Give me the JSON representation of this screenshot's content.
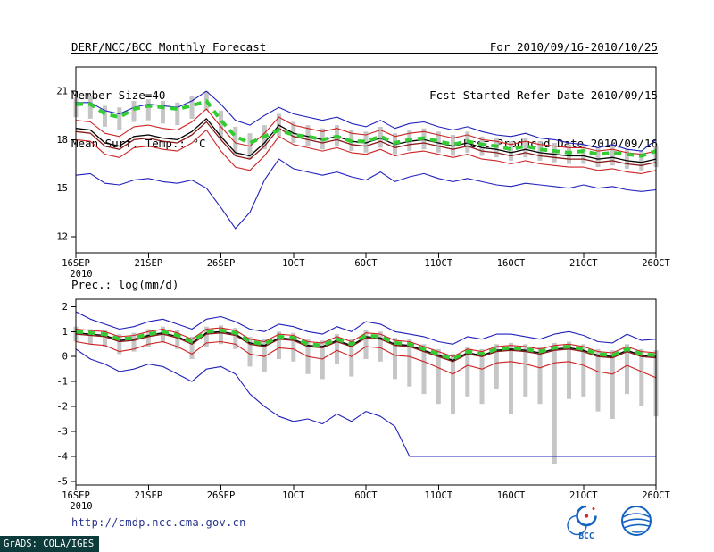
{
  "header": {
    "title": "DERF/NCC/BCC Monthly Forecast",
    "member_size": "Member Size=40",
    "variable": "Mean Surf. Temp.: °C",
    "for_range": "For 2010/09/16-2010/10/25",
    "refer_date": "Fcst Started Refer Date 2010/09/15",
    "produced_date": "Fcst Produced Date 2010/09/16"
  },
  "footer": {
    "url": "http://cmdp.ncc.cma.gov.cn",
    "grads_tag": "GrADS: COLA/IGES",
    "logos": [
      {
        "name": "bcc-logo",
        "label": "BCC"
      },
      {
        "name": "cma-emblem-logo",
        "label": ""
      }
    ]
  },
  "chart_data": [
    {
      "type": "line",
      "title": "Mean Surf. Temp.: °C",
      "xlabel": "",
      "ylabel": "",
      "x_tick_labels": [
        "16SEP",
        "21SEP",
        "26SEP",
        "1OCT",
        "6OCT",
        "11OCT",
        "16OCT",
        "21OCT",
        "26OCT"
      ],
      "x_sub_label": "2010",
      "x_tick_step": 5,
      "ylim": [
        11.0,
        22.5
      ],
      "yticks": [
        12,
        15,
        18,
        21
      ],
      "grid": false,
      "legend": "none",
      "bars": {
        "name": "ensemble-spread-bar",
        "color": "#c6c6c6",
        "high": [
          20.6,
          20.7,
          20.1,
          20.0,
          20.4,
          20.5,
          20.4,
          20.3,
          20.7,
          21.0,
          19.8,
          18.8,
          18.4,
          18.9,
          19.6,
          19.1,
          18.9,
          18.7,
          18.9,
          18.6,
          18.5,
          18.8,
          18.4,
          18.6,
          18.7,
          18.5,
          18.3,
          18.5,
          18.2,
          18.1,
          17.9,
          18.1,
          17.9,
          17.8,
          17.7,
          17.7,
          17.5,
          17.6,
          17.4,
          17.3,
          17.6
        ],
        "low": [
          19.4,
          19.3,
          18.8,
          18.6,
          19.1,
          19.2,
          19.0,
          18.9,
          19.3,
          19.8,
          18.0,
          17.0,
          16.8,
          17.4,
          18.2,
          17.8,
          17.6,
          17.4,
          17.6,
          17.3,
          17.2,
          17.5,
          17.1,
          17.3,
          17.4,
          17.2,
          17.0,
          17.2,
          17.0,
          16.9,
          16.7,
          16.9,
          16.7,
          16.6,
          16.5,
          16.5,
          16.3,
          16.4,
          16.2,
          16.1,
          16.3
        ]
      },
      "series": [
        {
          "name": "ensemble-max",
          "color": "#2020bb",
          "width": 1.1,
          "values": [
            20.3,
            20.3,
            19.8,
            19.6,
            20.0,
            20.2,
            20.1,
            20.0,
            20.4,
            21.0,
            20.2,
            19.2,
            18.9,
            19.5,
            20.0,
            19.6,
            19.4,
            19.2,
            19.4,
            19.0,
            18.8,
            19.2,
            18.7,
            19.0,
            19.1,
            18.8,
            18.6,
            18.8,
            18.5,
            18.3,
            18.2,
            18.4,
            18.1,
            18.0,
            17.8,
            17.7,
            17.5,
            17.7,
            17.4,
            17.3,
            18.0
          ]
        },
        {
          "name": "ensemble-min",
          "color": "#2020bb",
          "width": 1.1,
          "values": [
            15.8,
            15.9,
            15.3,
            15.2,
            15.5,
            15.6,
            15.4,
            15.3,
            15.5,
            15.0,
            13.8,
            12.5,
            13.5,
            15.5,
            16.8,
            16.2,
            16.0,
            15.8,
            16.0,
            15.7,
            15.5,
            16.0,
            15.4,
            15.7,
            15.9,
            15.6,
            15.4,
            15.6,
            15.4,
            15.2,
            15.1,
            15.3,
            15.2,
            15.1,
            15.0,
            15.2,
            15.0,
            15.1,
            14.9,
            14.8,
            14.9
          ]
        },
        {
          "name": "upper-quartile",
          "color": "#cc2222",
          "width": 1.1,
          "values": [
            19.2,
            19.1,
            18.4,
            18.2,
            18.8,
            18.9,
            18.7,
            18.6,
            19.1,
            19.9,
            18.8,
            17.8,
            17.6,
            18.4,
            19.4,
            18.9,
            18.7,
            18.5,
            18.7,
            18.4,
            18.3,
            18.6,
            18.2,
            18.4,
            18.5,
            18.3,
            18.1,
            18.3,
            18.0,
            17.9,
            17.7,
            17.9,
            17.7,
            17.6,
            17.5,
            17.5,
            17.3,
            17.4,
            17.2,
            17.1,
            17.3
          ]
        },
        {
          "name": "lower-quartile",
          "color": "#cc2222",
          "width": 1.1,
          "values": [
            18.0,
            17.9,
            17.1,
            16.9,
            17.5,
            17.6,
            17.4,
            17.3,
            17.8,
            18.6,
            17.3,
            16.3,
            16.1,
            17.0,
            18.2,
            17.7,
            17.5,
            17.3,
            17.5,
            17.2,
            17.1,
            17.4,
            17.0,
            17.2,
            17.3,
            17.1,
            16.9,
            17.1,
            16.8,
            16.7,
            16.5,
            16.7,
            16.5,
            16.4,
            16.3,
            16.3,
            16.1,
            16.2,
            16.0,
            15.9,
            16.1
          ]
        },
        {
          "name": "ensemble-median",
          "color": "#8b1a1a",
          "width": 1.3,
          "values": [
            18.5,
            18.4,
            17.6,
            17.4,
            18.0,
            18.1,
            17.9,
            17.8,
            18.3,
            19.1,
            18.0,
            17.0,
            16.8,
            17.6,
            18.7,
            18.2,
            18.0,
            17.8,
            18.0,
            17.7,
            17.6,
            17.9,
            17.5,
            17.7,
            17.8,
            17.6,
            17.4,
            17.6,
            17.3,
            17.2,
            17.0,
            17.2,
            17.0,
            16.9,
            16.8,
            16.8,
            16.6,
            16.7,
            16.5,
            16.4,
            16.6
          ]
        },
        {
          "name": "ensemble-mean",
          "color": "#000000",
          "width": 1.3,
          "values": [
            18.7,
            18.6,
            17.8,
            17.6,
            18.2,
            18.3,
            18.1,
            18.0,
            18.5,
            19.3,
            18.2,
            17.2,
            17.0,
            17.8,
            18.9,
            18.4,
            18.2,
            18.0,
            18.2,
            17.9,
            17.8,
            18.1,
            17.7,
            17.9,
            18.0,
            17.8,
            17.6,
            17.8,
            17.5,
            17.4,
            17.2,
            17.4,
            17.2,
            17.1,
            17.0,
            17.0,
            16.8,
            16.9,
            16.7,
            16.6,
            16.8
          ]
        },
        {
          "name": "climatology",
          "color": "#33cc33",
          "width": 4,
          "dash": "8,6",
          "values": [
            20.2,
            20.2,
            19.6,
            19.4,
            19.9,
            20.1,
            20.0,
            19.9,
            20.1,
            20.4,
            19.2,
            18.2,
            17.8,
            18.2,
            18.6,
            18.3,
            18.2,
            18.0,
            18.2,
            17.9,
            17.9,
            18.2,
            17.8,
            18.0,
            18.1,
            17.9,
            17.7,
            17.9,
            17.7,
            17.6,
            17.4,
            17.6,
            17.4,
            17.3,
            17.2,
            17.3,
            17.1,
            17.2,
            17.1,
            17.0,
            17.3
          ]
        }
      ]
    },
    {
      "type": "line",
      "title": "Prec.: log(mm/d)",
      "xlabel": "",
      "ylabel": "",
      "x_tick_labels": [
        "16SEP",
        "21SEP",
        "26SEP",
        "1OCT",
        "6OCT",
        "11OCT",
        "16OCT",
        "21OCT",
        "26OCT"
      ],
      "x_sub_label": "2010",
      "x_tick_step": 5,
      "ylim": [
        -5.15,
        2.3
      ],
      "yticks": [
        -5,
        -4,
        -3,
        -2,
        -1,
        0,
        1,
        2
      ],
      "grid": false,
      "legend": "none",
      "bars": {
        "name": "ensemble-spread-bar",
        "color": "#c6c6c6",
        "high": [
          1.2,
          1.1,
          1.05,
          0.9,
          0.95,
          1.1,
          1.2,
          1.05,
          0.8,
          1.2,
          1.25,
          1.15,
          0.8,
          0.7,
          1.0,
          0.95,
          0.7,
          0.65,
          0.9,
          0.7,
          1.05,
          1.0,
          0.75,
          0.7,
          0.5,
          0.3,
          0.1,
          0.4,
          0.3,
          0.5,
          0.55,
          0.5,
          0.4,
          0.55,
          0.6,
          0.5,
          0.3,
          0.25,
          0.5,
          0.3,
          0.25
        ],
        "low": [
          0.6,
          0.5,
          0.4,
          0.1,
          0.2,
          0.4,
          0.55,
          0.3,
          -0.1,
          0.4,
          0.5,
          0.3,
          -0.4,
          -0.6,
          -0.1,
          -0.2,
          -0.7,
          -0.9,
          -0.3,
          -0.8,
          -0.1,
          -0.2,
          -0.9,
          -1.2,
          -1.5,
          -1.9,
          -2.3,
          -1.6,
          -1.9,
          -1.3,
          -2.3,
          -1.6,
          -1.9,
          -4.3,
          -1.7,
          -1.6,
          -2.2,
          -2.5,
          -1.5,
          -2.0,
          -2.4
        ]
      },
      "series": [
        {
          "name": "ensemble-max",
          "color": "#2020bb",
          "width": 1.1,
          "values": [
            1.8,
            1.5,
            1.3,
            1.1,
            1.2,
            1.4,
            1.5,
            1.3,
            1.1,
            1.5,
            1.6,
            1.4,
            1.1,
            1.0,
            1.3,
            1.2,
            1.0,
            0.9,
            1.2,
            1.0,
            1.4,
            1.3,
            1.0,
            0.9,
            0.8,
            0.6,
            0.5,
            0.8,
            0.7,
            0.9,
            0.9,
            0.8,
            0.7,
            0.9,
            1.0,
            0.85,
            0.6,
            0.55,
            0.9,
            0.65,
            0.7
          ]
        },
        {
          "name": "ensemble-min",
          "color": "#2020bb",
          "width": 1.1,
          "values": [
            0.3,
            -0.1,
            -0.3,
            -0.6,
            -0.5,
            -0.3,
            -0.4,
            -0.7,
            -1.0,
            -0.5,
            -0.4,
            -0.7,
            -1.5,
            -2.0,
            -2.4,
            -2.6,
            -2.5,
            -2.7,
            -2.3,
            -2.6,
            -2.2,
            -2.4,
            -2.8,
            -4.0,
            -4.0,
            -4.0,
            -4.0,
            -4.0,
            -4.0,
            -4.0,
            -4.0,
            -4.0,
            -4.0,
            -4.0,
            -4.0,
            -4.0,
            -4.0,
            -4.0,
            -4.0,
            -4.0,
            -4.0
          ]
        },
        {
          "name": "upper-quartile",
          "color": "#cc2222",
          "width": 1.1,
          "values": [
            1.1,
            1.05,
            1.0,
            0.8,
            0.85,
            1.0,
            1.1,
            0.95,
            0.7,
            1.1,
            1.15,
            1.05,
            0.7,
            0.6,
            0.9,
            0.85,
            0.6,
            0.55,
            0.8,
            0.6,
            0.95,
            0.9,
            0.65,
            0.6,
            0.4,
            0.2,
            0.0,
            0.3,
            0.2,
            0.4,
            0.45,
            0.4,
            0.3,
            0.45,
            0.5,
            0.4,
            0.2,
            0.15,
            0.4,
            0.2,
            0.15
          ]
        },
        {
          "name": "lower-quartile",
          "color": "#cc2222",
          "width": 1.1,
          "values": [
            0.6,
            0.5,
            0.45,
            0.2,
            0.3,
            0.5,
            0.6,
            0.4,
            0.1,
            0.55,
            0.6,
            0.5,
            0.1,
            0.0,
            0.35,
            0.3,
            0.0,
            -0.1,
            0.25,
            0.0,
            0.4,
            0.35,
            0.05,
            0.0,
            -0.2,
            -0.45,
            -0.7,
            -0.35,
            -0.5,
            -0.25,
            -0.2,
            -0.3,
            -0.45,
            -0.25,
            -0.2,
            -0.35,
            -0.6,
            -0.7,
            -0.35,
            -0.6,
            -0.85
          ]
        },
        {
          "name": "ensemble-median",
          "color": "#8b1a1a",
          "width": 1.3,
          "values": [
            0.9,
            0.85,
            0.8,
            0.6,
            0.65,
            0.8,
            0.9,
            0.75,
            0.5,
            0.9,
            0.95,
            0.85,
            0.5,
            0.4,
            0.7,
            0.65,
            0.4,
            0.35,
            0.6,
            0.4,
            0.75,
            0.7,
            0.45,
            0.4,
            0.2,
            0.0,
            -0.2,
            0.1,
            0.0,
            0.2,
            0.25,
            0.2,
            0.1,
            0.25,
            0.3,
            0.2,
            0.0,
            -0.05,
            0.2,
            0.0,
            -0.05
          ]
        },
        {
          "name": "ensemble-mean",
          "color": "#000000",
          "width": 1.3,
          "values": [
            0.95,
            0.9,
            0.85,
            0.65,
            0.7,
            0.85,
            0.95,
            0.8,
            0.55,
            0.95,
            1.0,
            0.9,
            0.55,
            0.45,
            0.75,
            0.7,
            0.45,
            0.4,
            0.65,
            0.45,
            0.8,
            0.75,
            0.5,
            0.45,
            0.25,
            0.05,
            -0.15,
            0.15,
            0.05,
            0.25,
            0.3,
            0.25,
            0.15,
            0.3,
            0.35,
            0.25,
            0.05,
            0.0,
            0.25,
            0.05,
            0.0
          ]
        },
        {
          "name": "climatology",
          "color": "#33cc33",
          "width": 4,
          "dash": "8,6",
          "values": [
            1.0,
            0.95,
            0.9,
            0.7,
            0.75,
            0.9,
            1.0,
            0.85,
            0.6,
            1.0,
            1.05,
            0.95,
            0.6,
            0.5,
            0.8,
            0.75,
            0.5,
            0.45,
            0.7,
            0.5,
            0.85,
            0.8,
            0.55,
            0.5,
            0.3,
            0.1,
            -0.1,
            0.2,
            0.1,
            0.3,
            0.35,
            0.3,
            0.2,
            0.35,
            0.4,
            0.3,
            0.1,
            0.05,
            0.3,
            0.1,
            0.05
          ]
        }
      ]
    }
  ]
}
